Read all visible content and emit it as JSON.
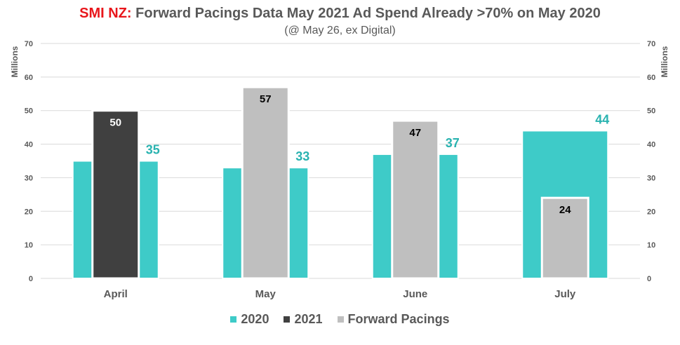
{
  "title_brand": "SMI NZ:",
  "title_rest": "Forward Pacings Data May 2021 Ad Spend Already >70% on May 2020",
  "subtitle": "(@ May 26, ex Digital)",
  "colors": {
    "s2020": "#3ecbc8",
    "s2021": "#404040",
    "forward": "#bfbfbf",
    "label2020": "#2ab3b0",
    "grid": "#d9d9d9",
    "axis_text": "#595959"
  },
  "chart_data": {
    "type": "bar",
    "categories": [
      "April",
      "May",
      "June",
      "July"
    ],
    "ylabel": "Millions",
    "ylabel_right": "Millions",
    "ylim": [
      0,
      70
    ],
    "yticks": [
      0,
      10,
      20,
      30,
      40,
      50,
      60,
      70
    ],
    "grid": true,
    "legend": "bottom",
    "series": [
      {
        "name": "2020",
        "values": [
          35,
          33,
          37,
          44
        ],
        "labels": [
          "35",
          "33",
          "37",
          "44"
        ]
      },
      {
        "name": "2021",
        "values": [
          50,
          null,
          null,
          null
        ],
        "labels": [
          "50",
          null,
          null,
          null
        ]
      },
      {
        "name": "Forward Pacings",
        "values": [
          null,
          57,
          47,
          24
        ],
        "labels": [
          null,
          "57",
          "47",
          "24"
        ]
      }
    ]
  }
}
